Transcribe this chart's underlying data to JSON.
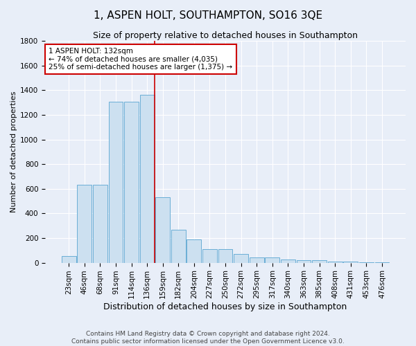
{
  "title": "1, ASPEN HOLT, SOUTHAMPTON, SO16 3QE",
  "subtitle": "Size of property relative to detached houses in Southampton",
  "xlabel": "Distribution of detached houses by size in Southampton",
  "ylabel": "Number of detached properties",
  "categories": [
    "23sqm",
    "46sqm",
    "68sqm",
    "91sqm",
    "114sqm",
    "136sqm",
    "159sqm",
    "182sqm",
    "204sqm",
    "227sqm",
    "250sqm",
    "272sqm",
    "295sqm",
    "317sqm",
    "340sqm",
    "363sqm",
    "385sqm",
    "408sqm",
    "431sqm",
    "453sqm",
    "476sqm"
  ],
  "bar_heights": [
    55,
    635,
    635,
    1305,
    1305,
    1365,
    530,
    270,
    190,
    110,
    110,
    70,
    40,
    40,
    25,
    20,
    20,
    10,
    10,
    5,
    5
  ],
  "bar_color": "#cce0f0",
  "bar_edge_color": "#6aaed6",
  "vline_index": 5.5,
  "vline_color": "#cc0000",
  "annotation_text": "1 ASPEN HOLT: 132sqm\n← 74% of detached houses are smaller (4,035)\n25% of semi-detached houses are larger (1,375) →",
  "annotation_box_color": "white",
  "annotation_box_edge": "#cc0000",
  "ylim": [
    0,
    1800
  ],
  "background_color": "#e8eef8",
  "grid_color": "#ffffff",
  "footer_text": "Contains HM Land Registry data © Crown copyright and database right 2024.\nContains public sector information licensed under the Open Government Licence v3.0.",
  "title_fontsize": 11,
  "subtitle_fontsize": 9,
  "ylabel_fontsize": 8,
  "xlabel_fontsize": 9,
  "tick_fontsize": 7.5,
  "footer_fontsize": 6.5
}
